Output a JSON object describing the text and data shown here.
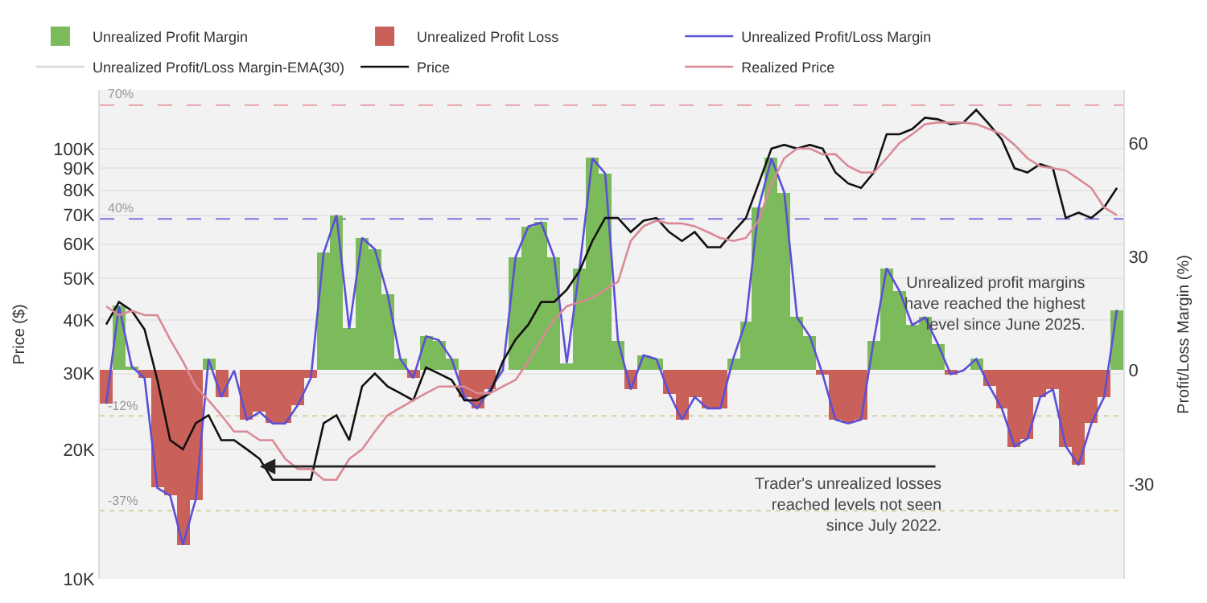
{
  "chart_data": {
    "type": "line",
    "ylabel": "Price ($)",
    "y2label": "Profit/Loss Margin (%)",
    "categories": [
      null,
      null,
      null,
      null,
      null,
      null,
      null,
      null,
      null,
      null,
      null,
      null,
      null,
      null,
      null,
      null,
      null,
      null,
      null,
      null,
      null,
      null,
      null,
      null,
      null,
      null,
      null,
      null,
      null,
      null,
      null,
      null,
      null,
      null,
      null,
      null,
      null,
      null,
      null,
      null,
      null,
      null,
      null,
      null,
      null,
      null,
      null,
      null,
      null,
      null,
      null,
      null,
      null,
      null,
      null,
      null,
      null,
      null,
      null,
      null,
      null,
      null,
      null,
      null,
      null,
      null,
      null,
      null,
      null,
      null,
      null,
      null,
      null,
      null,
      null,
      null,
      null,
      null,
      null,
      null
    ],
    "series": [
      {
        "name": "Unrealized Profit Margin",
        "type": "bar",
        "axis": "y2",
        "color": "#7cbb5c",
        "values": [
          null,
          17,
          1,
          null,
          null,
          null,
          null,
          null,
          3,
          null,
          0,
          null,
          null,
          null,
          null,
          null,
          null,
          31,
          41,
          11,
          35,
          32,
          20,
          3,
          null,
          9,
          8,
          3,
          null,
          null,
          null,
          0,
          30,
          38,
          39,
          30,
          2,
          27,
          56,
          52,
          8,
          null,
          4,
          3,
          null,
          null,
          null,
          null,
          null,
          3,
          13,
          43,
          56,
          47,
          14,
          9,
          null,
          null,
          null,
          null,
          8,
          27,
          21,
          12,
          14,
          7,
          null,
          0,
          3,
          null,
          null,
          null,
          null,
          null,
          null,
          null,
          null,
          null,
          null,
          16
        ]
      },
      {
        "name": "Unrealized Profit Loss",
        "type": "bar",
        "axis": "y2",
        "color": "#c9605a",
        "values": [
          -8.8,
          null,
          null,
          -2,
          -31,
          -33,
          -46,
          -34,
          null,
          -7,
          null,
          -13,
          -11,
          -14,
          -14,
          -9,
          -2,
          null,
          null,
          null,
          null,
          null,
          null,
          null,
          -2,
          null,
          null,
          null,
          -7,
          -10,
          -5,
          null,
          null,
          null,
          null,
          null,
          null,
          null,
          null,
          null,
          null,
          -5,
          null,
          null,
          -6,
          -13,
          -7,
          -10,
          -10,
          null,
          null,
          null,
          null,
          null,
          null,
          null,
          -1,
          -13,
          -14,
          -13,
          null,
          null,
          null,
          null,
          null,
          null,
          -1,
          null,
          null,
          -4,
          -10,
          -20,
          -18,
          -7,
          -5,
          -20,
          -25,
          -14,
          -7,
          null
        ]
      },
      {
        "name": "Unrealized Profit/Loss Margin",
        "type": "line",
        "axis": "y2",
        "color": "#5b4fd6",
        "values": [
          -8.8,
          17,
          1,
          -2,
          -31,
          -33,
          -46,
          -34,
          3,
          -7,
          0,
          -13,
          -11,
          -14,
          -14,
          -9,
          -2,
          31,
          41,
          11,
          35,
          32,
          20,
          3,
          -2,
          9,
          8,
          3,
          -7,
          -10,
          -5,
          0,
          30,
          38,
          39,
          30,
          2,
          27,
          56,
          52,
          8,
          -5,
          4,
          3,
          -6,
          -13,
          -7,
          -10,
          -10,
          3,
          13,
          43,
          56,
          47,
          14,
          9,
          -1,
          -13,
          -14,
          -13,
          8,
          27,
          21,
          12,
          14,
          7,
          -1,
          0,
          3,
          -4,
          -10,
          -20,
          -18,
          -7,
          -5,
          -20,
          -25,
          -14,
          -7,
          16
        ]
      },
      {
        "name": "Unrealized Profit/Loss Margin-EMA(30)",
        "type": "line",
        "axis": "y2",
        "color": "#d9d9d9",
        "values": [
          null,
          null,
          null,
          null,
          null,
          null,
          null,
          null,
          null,
          null,
          null,
          null,
          null,
          null,
          null,
          null,
          null,
          null,
          null,
          null,
          null,
          null,
          null,
          null,
          null,
          null,
          null,
          null,
          null,
          null,
          null,
          null,
          null,
          null,
          null,
          null,
          null,
          null,
          null,
          null,
          null,
          null,
          null,
          null,
          null,
          null,
          null,
          null,
          null,
          null,
          null,
          null,
          null,
          null,
          null,
          null,
          null,
          null,
          null,
          null,
          null,
          null,
          null,
          null,
          null,
          null,
          null,
          null,
          null,
          null,
          null,
          null,
          null,
          null,
          null,
          null,
          null,
          null,
          null,
          null
        ]
      },
      {
        "name": "Price",
        "color": "#111111",
        "values": [
          39000,
          44000,
          42000,
          38000,
          29000,
          21000,
          20000,
          23000,
          24000,
          21000,
          21000,
          20000,
          19000,
          17000,
          17000,
          17000,
          17000,
          23000,
          24000,
          21000,
          28000,
          30000,
          28000,
          27000,
          26000,
          31000,
          30000,
          29000,
          26000,
          26000,
          27000,
          32000,
          36000,
          39000,
          44000,
          44000,
          47000,
          52000,
          61000,
          69000,
          69000,
          64000,
          68000,
          69000,
          64000,
          61000,
          64000,
          59000,
          59000,
          64000,
          69000,
          83000,
          100000,
          102000,
          100000,
          102000,
          100000,
          88000,
          83000,
          81000,
          88000,
          108000,
          108000,
          111000,
          118000,
          117000,
          114000,
          115000,
          123000,
          114000,
          105000,
          90000,
          88000,
          92000,
          90000,
          69000,
          71000,
          69000,
          73000,
          81000
        ]
      },
      {
        "name": "Realized Price",
        "color": "#d98a96",
        "values": [
          43000,
          41000,
          42000,
          41000,
          41000,
          36000,
          32000,
          28000,
          26000,
          24000,
          22000,
          22000,
          21000,
          21000,
          19000,
          18000,
          18000,
          17000,
          17000,
          19000,
          20000,
          22000,
          24000,
          25000,
          26000,
          27000,
          28000,
          28000,
          28000,
          27000,
          27000,
          28000,
          29000,
          32000,
          36000,
          40000,
          43000,
          44000,
          45000,
          47000,
          49000,
          61000,
          66000,
          68000,
          67000,
          67000,
          66000,
          64000,
          62000,
          61000,
          62000,
          68000,
          83000,
          95000,
          100000,
          100000,
          97000,
          97000,
          91000,
          88000,
          88000,
          95000,
          103000,
          108000,
          114000,
          115000,
          115000,
          115000,
          114000,
          111000,
          108000,
          102000,
          95000,
          91000,
          90000,
          89000,
          85000,
          81000,
          73000,
          70000
        ]
      }
    ],
    "log": "y",
    "ylim": [
      10000,
      136800
    ],
    "yticks": [
      {
        "value": 10000,
        "label": "10K"
      },
      {
        "value": 20000,
        "label": "20K"
      },
      {
        "value": 30000,
        "label": "30K"
      },
      {
        "value": 40000,
        "label": "40K"
      },
      {
        "value": 50000,
        "label": "50K"
      },
      {
        "value": 60000,
        "label": "60K"
      },
      {
        "value": 70000,
        "label": "70K"
      },
      {
        "value": 80000,
        "label": "80K"
      },
      {
        "value": 90000,
        "label": "90K"
      },
      {
        "value": 100000,
        "label": "100K"
      }
    ],
    "y2lim": [
      -55,
      74
    ],
    "y2ticks": [
      -30,
      0,
      30,
      60
    ],
    "ref_lines": [
      {
        "axis": "y2",
        "value": 70,
        "label": "70%",
        "color": "#e8a0a8",
        "line_style": "dashed"
      },
      {
        "axis": "y2",
        "value": 40,
        "label": "40%",
        "color": "#7c74e0",
        "line_style": "dashed"
      },
      {
        "axis": "y2",
        "value": -12,
        "label": "-12%",
        "color": "#d8d0a0",
        "line_style": "dotted"
      },
      {
        "axis": "y2",
        "value": -37,
        "label": "-37%",
        "color": "#d8d0a0",
        "line_style": "dotted"
      }
    ],
    "annotations": [
      "Unrealized profit margins\nhave reached the highest\nlevel since June 2025.",
      "Trader's unrealized losses\nreached levels not seen\nsince July 2022."
    ],
    "grid": "y",
    "legend": "top"
  }
}
